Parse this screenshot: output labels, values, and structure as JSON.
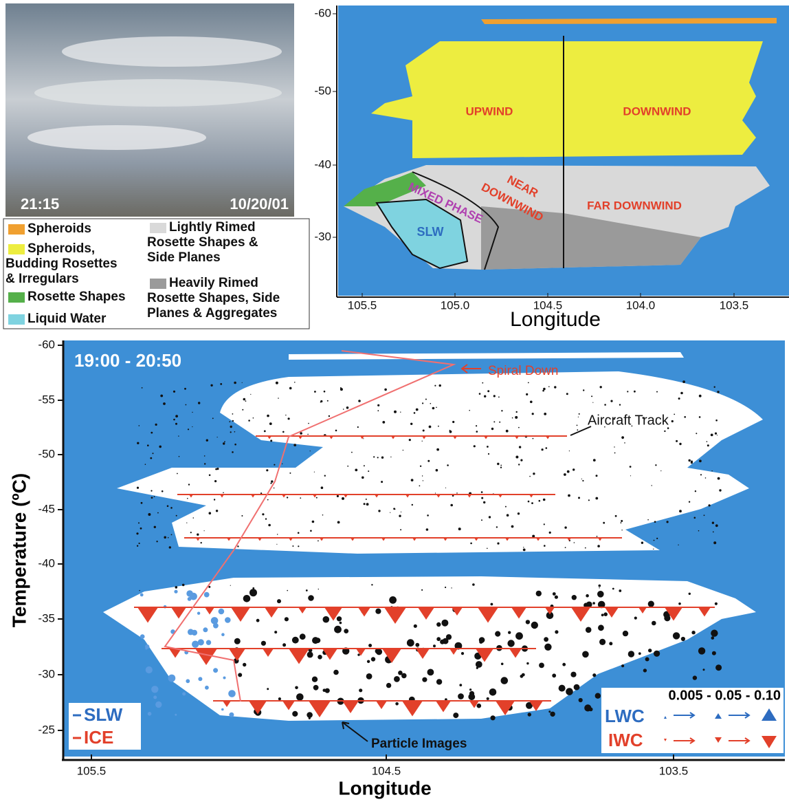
{
  "photo": {
    "time": "21:15",
    "date": "10/20/01"
  },
  "legend": [
    {
      "lines": [
        "Spheroids"
      ]
    },
    {
      "lines": [
        "Spheroids,",
        "Budding Rosettes",
        "& Irregulars"
      ]
    },
    {
      "lines": [
        "Rosette Shapes"
      ]
    },
    {
      "lines": [
        "Liquid Water"
      ]
    },
    {
      "lines": [
        "Lightly Rimed",
        "Rosette Shapes &",
        "Side Planes"
      ]
    },
    {
      "lines": [
        "Heavily Rimed",
        "Rosette Shapes, Side",
        "Planes  & Aggregates"
      ]
    }
  ],
  "top_panel": {
    "yticks": [
      "-60",
      "-50",
      "-40",
      "-30"
    ],
    "xticks": [
      "105.5",
      "105.0",
      "104.5",
      "104.0",
      "103.5"
    ],
    "xlabel": "Longitude",
    "regions": {
      "upwind": "UPWIND",
      "downwind": "DOWNWIND",
      "near_downwind": [
        "NEAR",
        "DOWNWIND"
      ],
      "far_downwind": "FAR DOWNWIND",
      "mixed_phase": "MIXED  PHASE",
      "slw": "SLW"
    }
  },
  "bottom_panel": {
    "time_range": "19:00 - 20:50",
    "ylabel": "Temperature (ºC)",
    "yticks": [
      "-60",
      "-55",
      "-50",
      "-45",
      "-40",
      "-35",
      "-30",
      "-25"
    ],
    "xticks": [
      "105.5",
      "104.5",
      "103.5"
    ],
    "xlabel": "Longitude",
    "annotations": {
      "spiral": "Spiral Down",
      "track": "Aircraft Track",
      "particles": "Particle Images"
    },
    "key": {
      "slw": "SLW",
      "ice": "ICE"
    },
    "scale": {
      "range": "0.005 - 0.05 - 0.10",
      "lwc": "LWC",
      "iwc": "IWC"
    }
  }
}
